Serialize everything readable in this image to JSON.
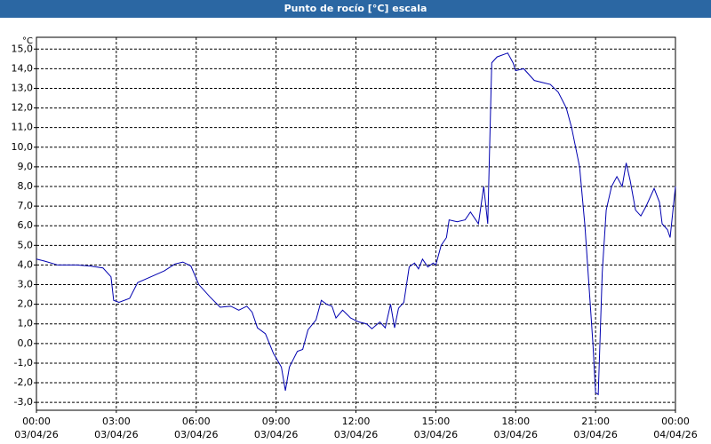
{
  "chart_data": {
    "type": "line",
    "title": "Punto de rocío [°C] escala",
    "unit_label": "°C",
    "x": [
      0,
      0.3,
      0.8,
      1.5,
      2.0,
      2.5,
      2.8,
      2.9,
      3.1,
      3.5,
      3.8,
      4.3,
      4.8,
      5.2,
      5.5,
      5.8,
      6.1,
      6.5,
      6.9,
      7.3,
      7.6,
      7.9,
      8.1,
      8.3,
      8.6,
      8.9,
      9.2,
      9.35,
      9.5,
      9.8,
      10.0,
      10.2,
      10.5,
      10.7,
      10.9,
      11.1,
      11.25,
      11.5,
      11.8,
      12.1,
      12.4,
      12.6,
      12.9,
      13.1,
      13.3,
      13.45,
      13.6,
      13.8,
      14.0,
      14.2,
      14.35,
      14.5,
      14.7,
      14.9,
      15.0,
      15.2,
      15.4,
      15.5,
      15.8,
      16.1,
      16.3,
      16.5,
      16.6,
      16.8,
      16.95,
      17.1,
      17.3,
      17.7,
      17.9,
      18.0,
      18.3,
      18.7,
      19.0,
      19.3,
      19.6,
      19.9,
      20.1,
      20.4,
      20.6,
      20.9,
      21.0,
      21.1,
      21.25,
      21.4,
      21.6,
      21.8,
      22.0,
      22.15,
      22.3,
      22.5,
      22.7,
      22.9,
      23.2,
      23.4,
      23.5,
      23.7,
      23.8,
      24.0
    ],
    "series": [
      {
        "name": "Punto de rocío",
        "color": "#0000b0",
        "values": [
          4.3,
          4.2,
          4.0,
          4.0,
          3.95,
          3.85,
          3.4,
          2.2,
          2.1,
          2.3,
          3.1,
          3.4,
          3.7,
          4.05,
          4.15,
          3.95,
          3.0,
          2.4,
          1.85,
          1.9,
          1.7,
          1.9,
          1.6,
          0.8,
          0.5,
          -0.5,
          -1.2,
          -2.4,
          -1.2,
          -0.4,
          -0.3,
          0.7,
          1.2,
          2.2,
          2.0,
          1.9,
          1.3,
          1.7,
          1.3,
          1.1,
          1.0,
          0.75,
          1.1,
          0.8,
          2.0,
          0.8,
          1.8,
          2.1,
          3.9,
          4.1,
          3.8,
          4.3,
          3.9,
          4.1,
          4.0,
          5.0,
          5.4,
          6.3,
          6.2,
          6.3,
          6.7,
          6.3,
          6.1,
          8.0,
          6.1,
          14.3,
          14.6,
          14.8,
          14.3,
          13.9,
          14.0,
          13.4,
          13.3,
          13.2,
          12.8,
          12.0,
          11.0,
          9.0,
          6.0,
          0,
          -2.5,
          -2.6,
          3.6,
          6.8,
          8.0,
          8.5,
          8.0,
          9.2,
          8.3,
          6.8,
          6.5,
          7.0,
          7.9,
          7.2,
          6.1,
          5.8,
          5.4,
          8.0
        ]
      }
    ],
    "xlim": [
      0,
      24
    ],
    "xticks": [
      {
        "value": 0,
        "label": "00:00",
        "date": "03/04/26"
      },
      {
        "value": 3,
        "label": "03:00",
        "date": "03/04/26"
      },
      {
        "value": 6,
        "label": "06:00",
        "date": "03/04/26"
      },
      {
        "value": 9,
        "label": "09:00",
        "date": "03/04/26"
      },
      {
        "value": 12,
        "label": "12:00",
        "date": "03/04/26"
      },
      {
        "value": 15,
        "label": "15:00",
        "date": "03/04/26"
      },
      {
        "value": 18,
        "label": "18:00",
        "date": "03/04/26"
      },
      {
        "value": 21,
        "label": "21:00",
        "date": "03/04/26"
      },
      {
        "value": 24,
        "label": "00:00",
        "date": "04/04/26"
      }
    ],
    "ylim": [
      -3.4,
      15.6
    ],
    "yticks": [
      {
        "value": -3,
        "label": "-3,0"
      },
      {
        "value": -2,
        "label": "-2,0"
      },
      {
        "value": -1,
        "label": "-1,0"
      },
      {
        "value": 0,
        "label": "0,0"
      },
      {
        "value": 1,
        "label": "1,0"
      },
      {
        "value": 2,
        "label": "2,0"
      },
      {
        "value": 3,
        "label": "3,0"
      },
      {
        "value": 4,
        "label": "4,0"
      },
      {
        "value": 5,
        "label": "5,0"
      },
      {
        "value": 6,
        "label": "6,0"
      },
      {
        "value": 7,
        "label": "7,0"
      },
      {
        "value": 8,
        "label": "8,0"
      },
      {
        "value": 9,
        "label": "9,0"
      },
      {
        "value": 10,
        "label": "10,0"
      },
      {
        "value": 11,
        "label": "11,0"
      },
      {
        "value": 12,
        "label": "12,0"
      },
      {
        "value": 13,
        "label": "13,0"
      },
      {
        "value": 14,
        "label": "14,0"
      },
      {
        "value": 15,
        "label": "15,0"
      }
    ],
    "grid": true
  }
}
